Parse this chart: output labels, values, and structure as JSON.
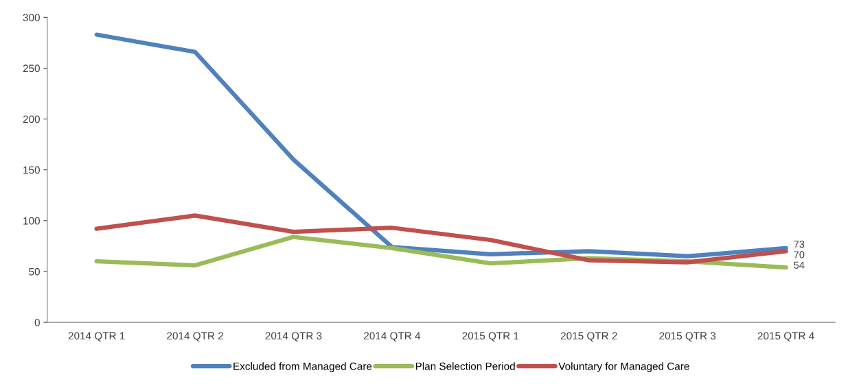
{
  "chart_data": {
    "type": "line",
    "categories": [
      "2014 QTR 1",
      "2014 QTR 2",
      "2014 QTR 3",
      "2014 QTR 4",
      "2015 QTR 1",
      "2015 QTR 2",
      "2015 QTR 3",
      "2015 QTR 4"
    ],
    "series": [
      {
        "name": "Excluded from Managed Care",
        "color": "#4f81bd",
        "values": [
          283,
          266,
          160,
          74,
          67,
          70,
          65,
          73
        ],
        "value_labels": [
          null,
          null,
          null,
          null,
          null,
          null,
          null,
          "73"
        ]
      },
      {
        "name": "Plan Selection Period",
        "color": "#9bbb59",
        "values": [
          60,
          56,
          84,
          73,
          58,
          63,
          60,
          54
        ],
        "value_labels": [
          null,
          null,
          null,
          null,
          null,
          null,
          null,
          "54"
        ]
      },
      {
        "name": "Voluntary for Managed Care",
        "color": "#c0504d",
        "values": [
          92,
          105,
          89,
          93,
          81,
          61,
          59,
          70
        ],
        "value_labels": [
          null,
          null,
          null,
          null,
          null,
          null,
          null,
          "70"
        ]
      }
    ],
    "ylim": [
      0,
      300
    ],
    "yticks": [
      0,
      50,
      100,
      150,
      200,
      250,
      300
    ],
    "grid": false,
    "legend": "bottom",
    "marker": "none",
    "line_style": "solid"
  }
}
